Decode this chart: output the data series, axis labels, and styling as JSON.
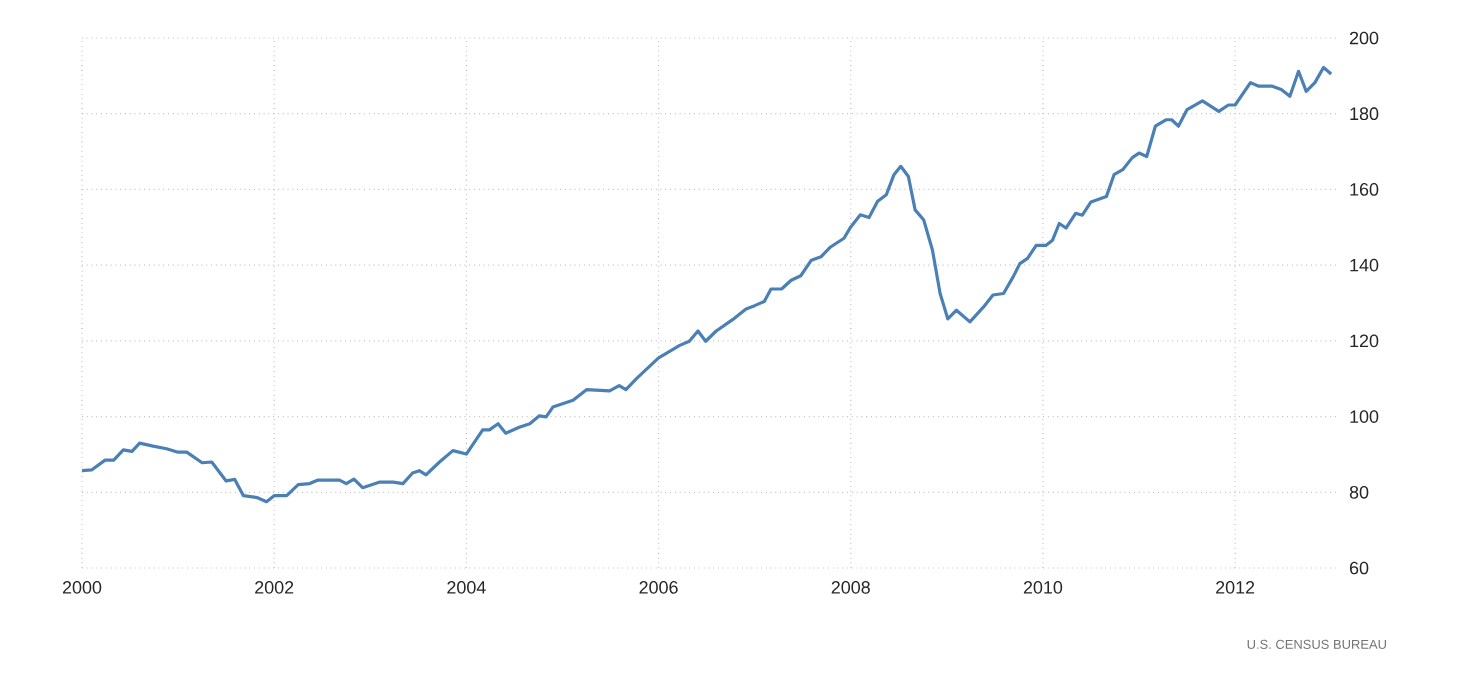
{
  "chart_data": {
    "type": "line",
    "x": [
      2000.0,
      2000.1,
      2000.24,
      2000.33,
      2000.43,
      2000.52,
      2000.6,
      2000.74,
      2000.88,
      2001.0,
      2001.09,
      2001.25,
      2001.35,
      2001.5,
      2001.59,
      2001.68,
      2001.82,
      2001.92,
      2002.0,
      2002.13,
      2002.25,
      2002.37,
      2002.45,
      2002.68,
      2002.75,
      2002.83,
      2002.92,
      2003.1,
      2003.24,
      2003.34,
      2003.44,
      2003.51,
      2003.58,
      2003.72,
      2003.86,
      2004.0,
      2004.17,
      2004.24,
      2004.33,
      2004.41,
      2004.55,
      2004.66,
      2004.76,
      2004.83,
      2004.9,
      2005.11,
      2005.25,
      2005.49,
      2005.59,
      2005.66,
      2005.77,
      2006.0,
      2006.08,
      2006.22,
      2006.32,
      2006.41,
      2006.49,
      2006.6,
      2006.77,
      2006.91,
      2007.0,
      2007.1,
      2007.17,
      2007.28,
      2007.38,
      2007.48,
      2007.59,
      2007.69,
      2007.79,
      2007.93,
      2008.0,
      2008.1,
      2008.19,
      2008.28,
      2008.37,
      2008.45,
      2008.52,
      2008.6,
      2008.67,
      2008.76,
      2008.85,
      2008.93,
      2009.01,
      2009.1,
      2009.24,
      2009.38,
      2009.48,
      2009.59,
      2009.69,
      2009.76,
      2009.84,
      2009.93,
      2010.03,
      2010.1,
      2010.17,
      2010.24,
      2010.34,
      2010.41,
      2010.5,
      2010.66,
      2010.74,
      2010.83,
      2010.93,
      2011.0,
      2011.08,
      2011.17,
      2011.28,
      2011.34,
      2011.41,
      2011.5,
      2011.66,
      2011.83,
      2011.93,
      2012.0,
      2012.16,
      2012.24,
      2012.38,
      2012.48,
      2012.57,
      2012.66,
      2012.74,
      2012.83,
      2012.92,
      2013.0
    ],
    "series": [
      {
        "color": "#4a80b5",
        "values": [
          85.7,
          85.9,
          88.5,
          88.5,
          91.2,
          90.8,
          93,
          92.2,
          91.5,
          90.6,
          90.6,
          87.8,
          88,
          83,
          83.4,
          79.1,
          78.6,
          77.5,
          79.1,
          79.1,
          82,
          82.3,
          83.2,
          83.2,
          82.3,
          83.5,
          81.2,
          82.7,
          82.7,
          82.3,
          85.1,
          85.7,
          84.6,
          88,
          91,
          90.1,
          96.5,
          96.5,
          98.1,
          95.6,
          97.2,
          98.1,
          100.2,
          99.9,
          102.5,
          104.3,
          107.1,
          106.8,
          108.2,
          107.1,
          110,
          115.5,
          116.7,
          118.8,
          119.9,
          122.6,
          119.9,
          122.6,
          125.6,
          128.4,
          129.3,
          130.4,
          133.7,
          133.7,
          136,
          137.2,
          141.3,
          142.2,
          144.8,
          147.1,
          150.1,
          153.3,
          152.6,
          156.9,
          158.6,
          163.9,
          166.1,
          163.4,
          154.6,
          151.9,
          144,
          132.5,
          125.8,
          128.1,
          125,
          128.9,
          132.1,
          132.5,
          136.9,
          140.4,
          141.8,
          145.2,
          145.2,
          146.6,
          151,
          149.8,
          153.7,
          153.2,
          156.7,
          158.1,
          163.9,
          165.2,
          168.4,
          169.6,
          168.7,
          176.7,
          178.4,
          178.4,
          176.7,
          181.1,
          183.4,
          180.6,
          182.3,
          182.3,
          188.2,
          187.3,
          187.3,
          186.4,
          184.6,
          191.2,
          185.9,
          188.2,
          192.2,
          190.5
        ]
      }
    ],
    "xlim": [
      2000,
      2013.05
    ],
    "ylim": [
      60,
      200
    ],
    "xticks": [
      2000,
      2002,
      2004,
      2006,
      2008,
      2010,
      2012
    ],
    "yticks": [
      60,
      80,
      100,
      120,
      140,
      160,
      180,
      200
    ],
    "grid": true,
    "annotations": [
      "U.S. CENSUS BUREAU"
    ]
  }
}
